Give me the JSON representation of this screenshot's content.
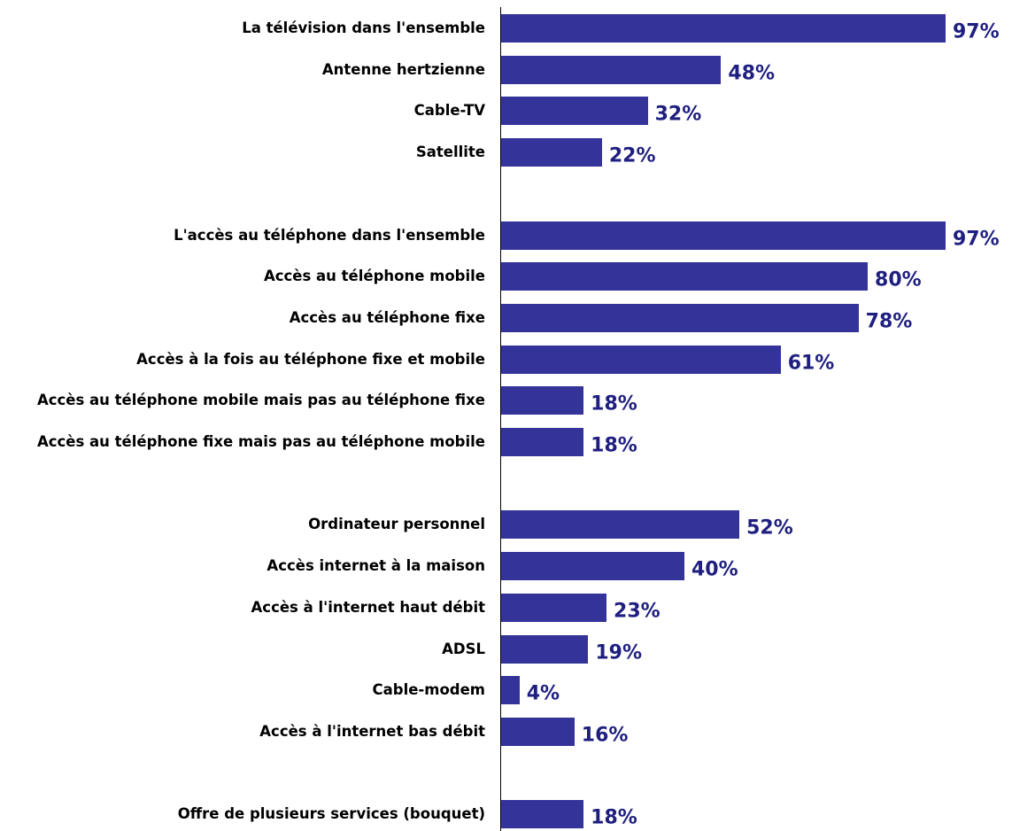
{
  "chart_data": {
    "type": "bar",
    "orientation": "horizontal",
    "color": "#333399",
    "categories": [
      "La télévision dans l'ensemble",
      "Antenne hertzienne",
      "Cable-TV",
      "Satellite",
      null,
      "L'accès au téléphone dans l'ensemble",
      "Accès au téléphone mobile",
      "Accès au téléphone fixe",
      "Accès à la fois au téléphone fixe et mobile",
      "Accès au téléphone mobile mais pas au téléphone fixe",
      "Accès au téléphone fixe mais pas au téléphone mobile",
      null,
      "Ordinateur personnel",
      "Accès internet à la maison",
      "Accès à l'internet haut débit",
      "ADSL",
      "Cable-modem",
      "Accès à l'internet bas débit",
      null,
      "Offre de plusieurs services (bouquet)"
    ],
    "values": [
      97,
      48,
      32,
      22,
      null,
      97,
      80,
      78,
      61,
      18,
      18,
      null,
      52,
      40,
      23,
      19,
      4,
      16,
      null,
      18
    ],
    "value_labels": [
      "97%",
      "48%",
      "32%",
      "22%",
      null,
      "97%",
      "80%",
      "78%",
      "61%",
      "18%",
      "18%",
      null,
      "52%",
      "40%",
      "23%",
      "19%",
      "4%",
      "16%",
      null,
      "18%"
    ]
  }
}
